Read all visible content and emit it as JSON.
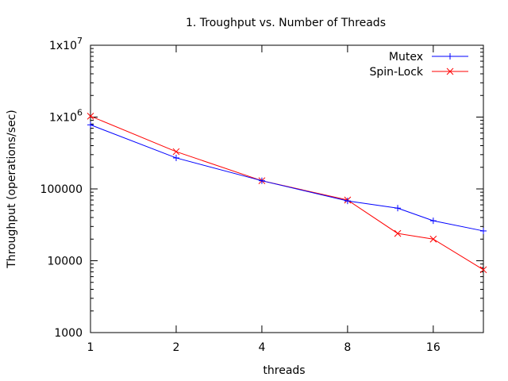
{
  "chart_data": {
    "type": "line",
    "title": "1. Troughput vs. Number of Threads",
    "xlabel": "threads",
    "ylabel": "Throughput (operations/sec)",
    "x_scale": "log2",
    "y_scale": "log10",
    "xlim": [
      1,
      24
    ],
    "ylim": [
      1000,
      10000000
    ],
    "xticks": [
      {
        "value": 1,
        "label": "1"
      },
      {
        "value": 2,
        "label": "2"
      },
      {
        "value": 4,
        "label": "4"
      },
      {
        "value": 8,
        "label": "8"
      },
      {
        "value": 16,
        "label": "16"
      }
    ],
    "yticks": [
      {
        "value": 1000,
        "label": "1000"
      },
      {
        "value": 10000,
        "label": "10000"
      },
      {
        "value": 100000,
        "label": "100000"
      },
      {
        "value": 1000000,
        "base": "1x10",
        "exp": "6"
      },
      {
        "value": 10000000,
        "base": "1x10",
        "exp": "7"
      }
    ],
    "grid": false,
    "legend_position": "top-right",
    "series": [
      {
        "name": "Mutex",
        "color": "#0000ff",
        "marker": "plus",
        "points": [
          [
            1,
            780000
          ],
          [
            2,
            270000
          ],
          [
            4,
            130000
          ],
          [
            8,
            68000
          ],
          [
            12,
            54000
          ],
          [
            16,
            36000
          ],
          [
            24,
            26000
          ]
        ]
      },
      {
        "name": "Spin-Lock",
        "color": "#ff0000",
        "marker": "cross",
        "points": [
          [
            1,
            1030000
          ],
          [
            2,
            330000
          ],
          [
            4,
            130000
          ],
          [
            8,
            70000
          ],
          [
            12,
            24000
          ],
          [
            16,
            20000
          ],
          [
            24,
            7500
          ]
        ]
      }
    ]
  }
}
